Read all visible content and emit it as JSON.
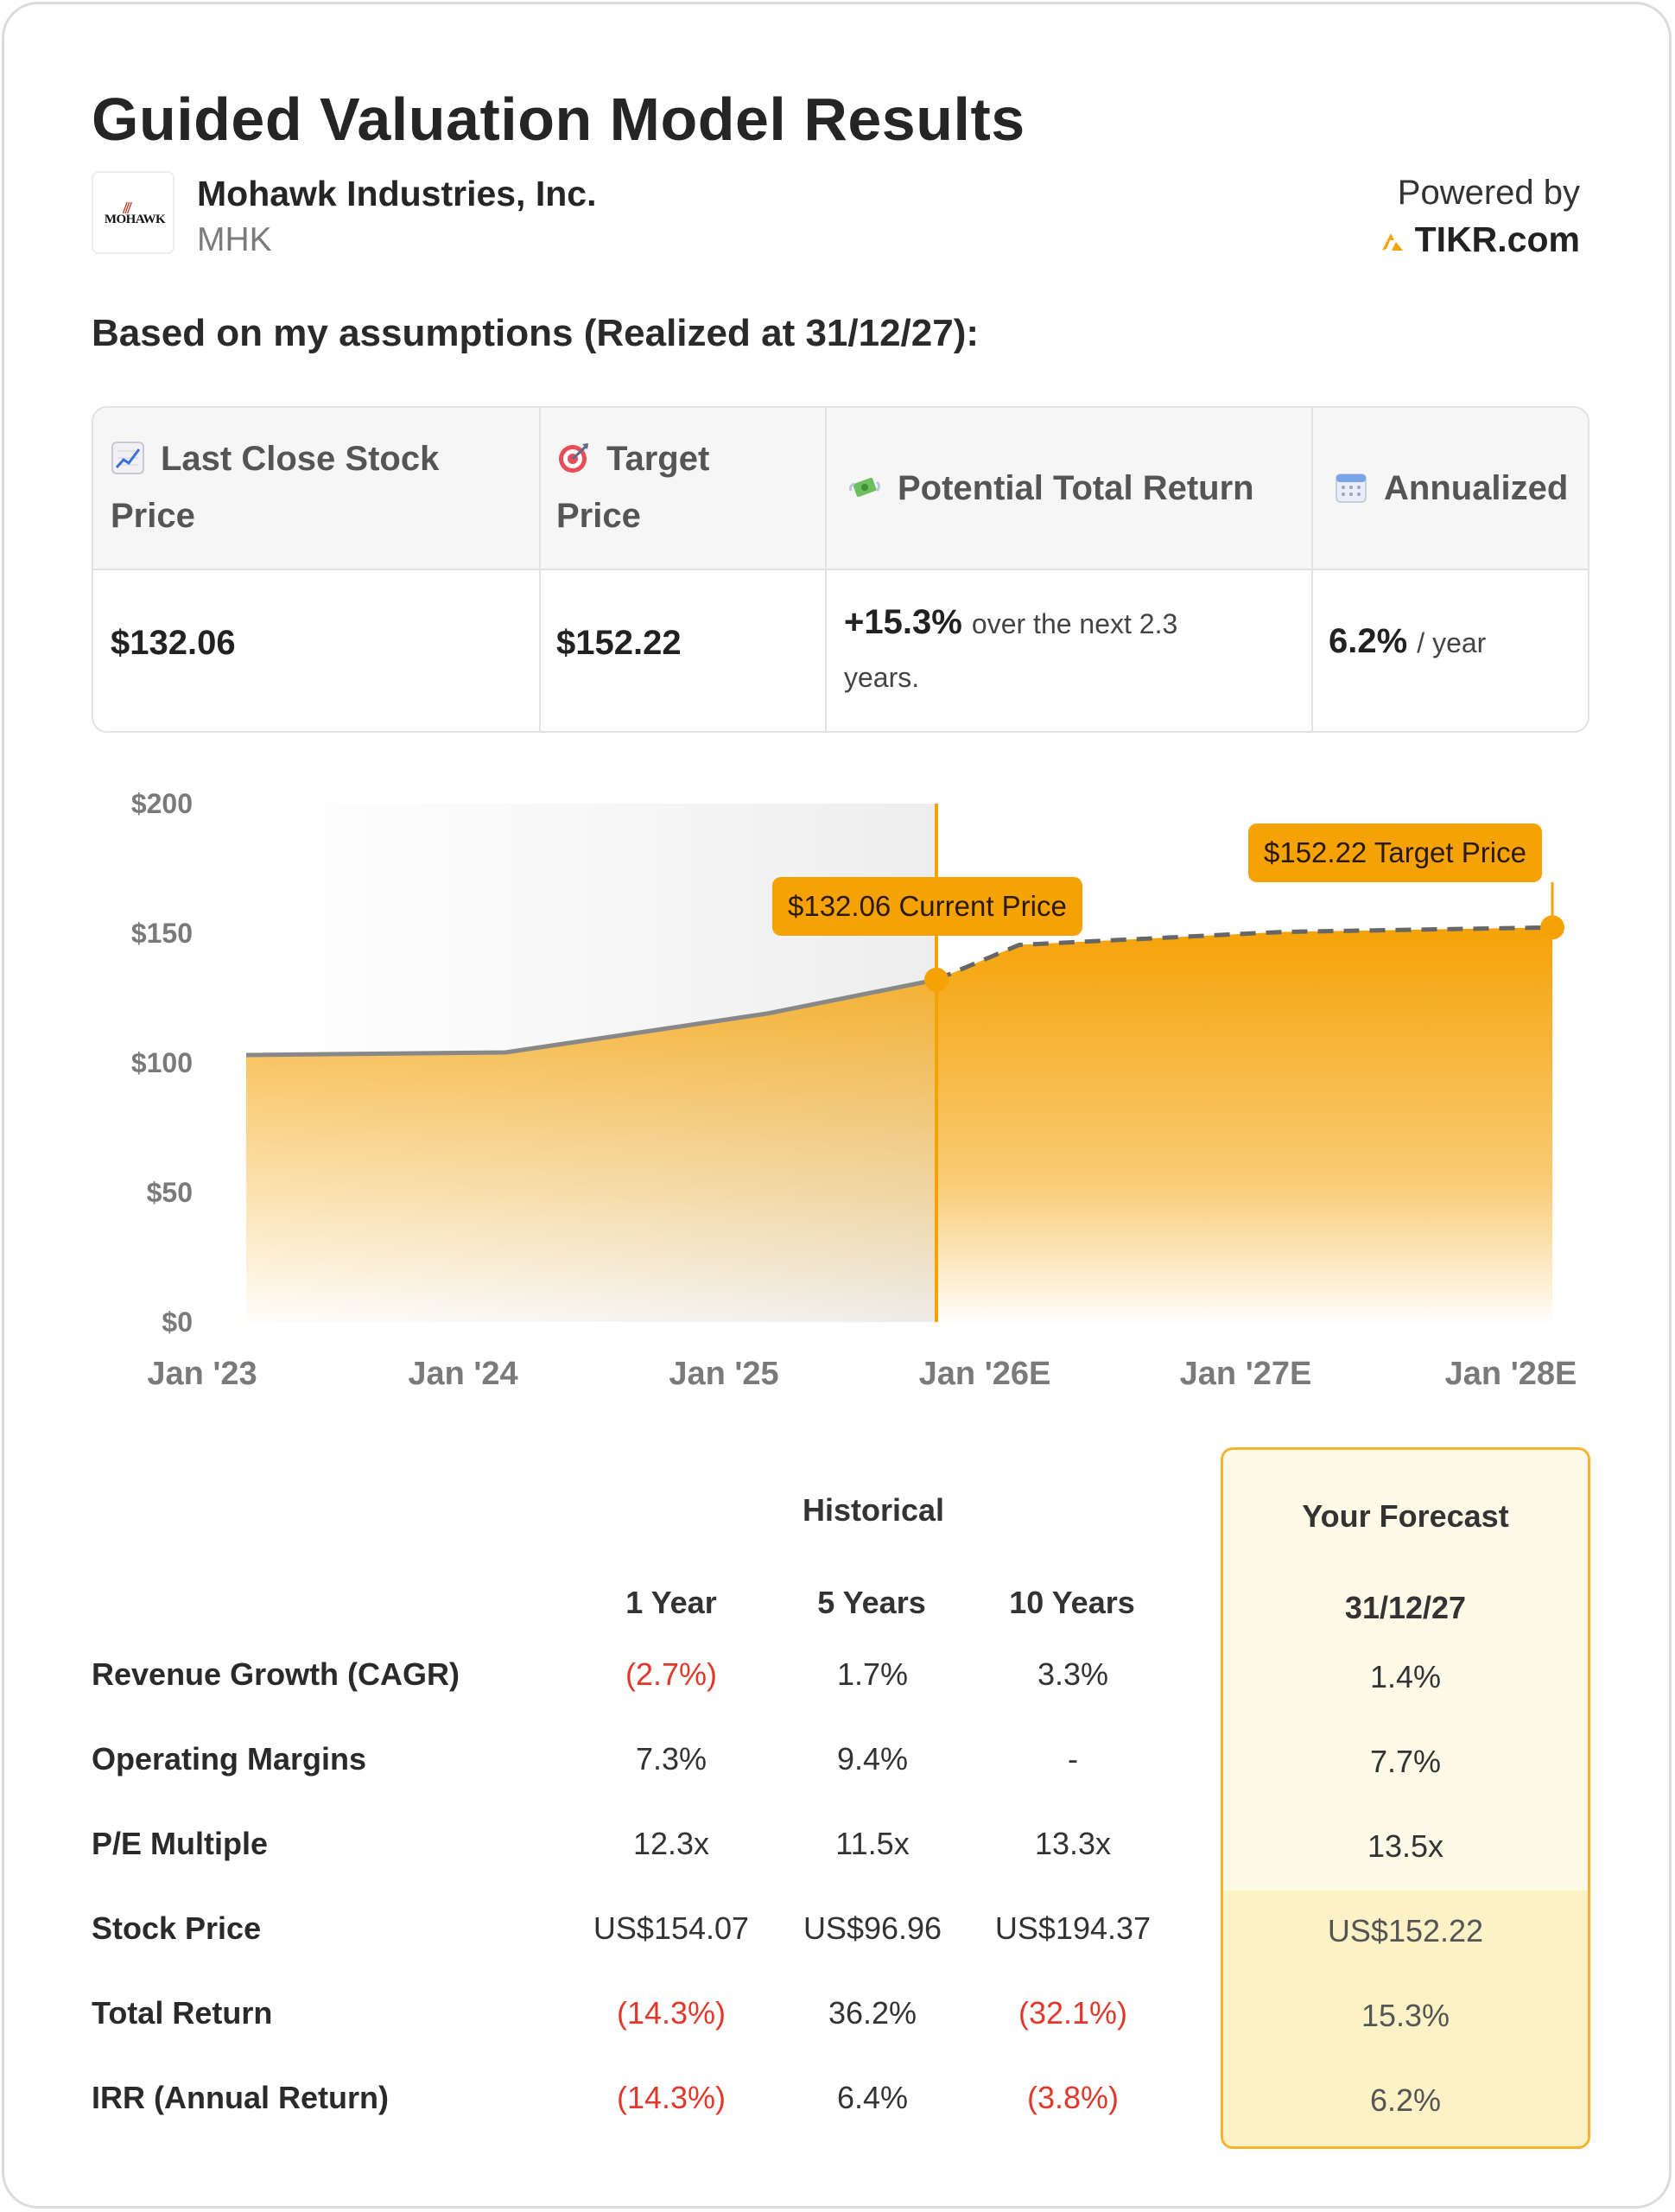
{
  "header": {
    "title": "Guided Valuation Model Results",
    "company_name": "Mohawk Industries, Inc.",
    "ticker": "MHK",
    "logo_text": "MOHAWK",
    "powered_by_label": "Powered by",
    "brand": "TIKR.com"
  },
  "subheading": "Based on my assumptions (Realized at 31/12/27):",
  "metrics": {
    "last_close": {
      "icon": "chart-increasing-icon",
      "label_line1": "Last Close Stock",
      "label_line2": "Price",
      "value": "$132.06"
    },
    "target": {
      "icon": "target-icon",
      "label_line1": "Target",
      "label_line2": "Price",
      "value": "$152.22"
    },
    "potential_return": {
      "icon": "money-with-wings-icon",
      "label": "Potential Total Return",
      "value": "+15.3%",
      "detail_line1": "over the next 2.3",
      "detail_line2": "years."
    },
    "annualized": {
      "icon": "calendar-icon",
      "label": "Annualized",
      "value": "6.2%",
      "unit": "/ year"
    }
  },
  "chart_data": {
    "type": "area",
    "x_tick_labels": [
      "Jan '23",
      "Jan '24",
      "Jan '25",
      "Jan '26E",
      "Jan '27E",
      "Jan '28E"
    ],
    "y_tick_labels": [
      "$200",
      "$150",
      "$100",
      "$50",
      "$0"
    ],
    "ylim": [
      0,
      200
    ],
    "historical": {
      "x": [
        "Jan '23",
        "Jan '24",
        "Jan '25",
        "Current"
      ],
      "y": [
        103,
        104,
        119,
        132.06
      ]
    },
    "forecast": {
      "x": [
        "Current",
        "Jan '26E",
        "Jan '27E",
        "Jan '28E"
      ],
      "y": [
        132.06,
        145.5,
        150.5,
        152.22
      ]
    },
    "annotations": {
      "current": "$132.06 Current Price",
      "target": "$152.22 Target Price"
    },
    "colors": {
      "area": "#f5a206",
      "line": "#888888",
      "marker": "#f5a206"
    }
  },
  "table": {
    "historical_title": "Historical",
    "columns": [
      "1 Year",
      "5 Years",
      "10 Years"
    ],
    "forecast_title": "Your Forecast",
    "forecast_date": "31/12/27",
    "rows": [
      {
        "label": "Revenue Growth (CAGR)",
        "values": [
          "(2.7%)",
          "1.7%",
          "3.3%"
        ],
        "forecast": "1.4%"
      },
      {
        "label": "Operating Margins",
        "values": [
          "7.3%",
          "9.4%",
          "-"
        ],
        "forecast": "7.7%"
      },
      {
        "label": "P/E Multiple",
        "values": [
          "12.3x",
          "11.5x",
          "13.3x"
        ],
        "forecast": "13.5x"
      },
      {
        "label": "Stock Price",
        "values": [
          "US$154.07",
          "US$96.96",
          "US$194.37"
        ],
        "forecast": "US$152.22"
      },
      {
        "label": "Total Return",
        "values": [
          "(14.3%)",
          "36.2%",
          "(32.1%)"
        ],
        "forecast": "15.3%"
      },
      {
        "label": "IRR (Annual Return)",
        "values": [
          "(14.3%)",
          "6.4%",
          "(3.8%)"
        ],
        "forecast": "6.2%"
      }
    ]
  }
}
